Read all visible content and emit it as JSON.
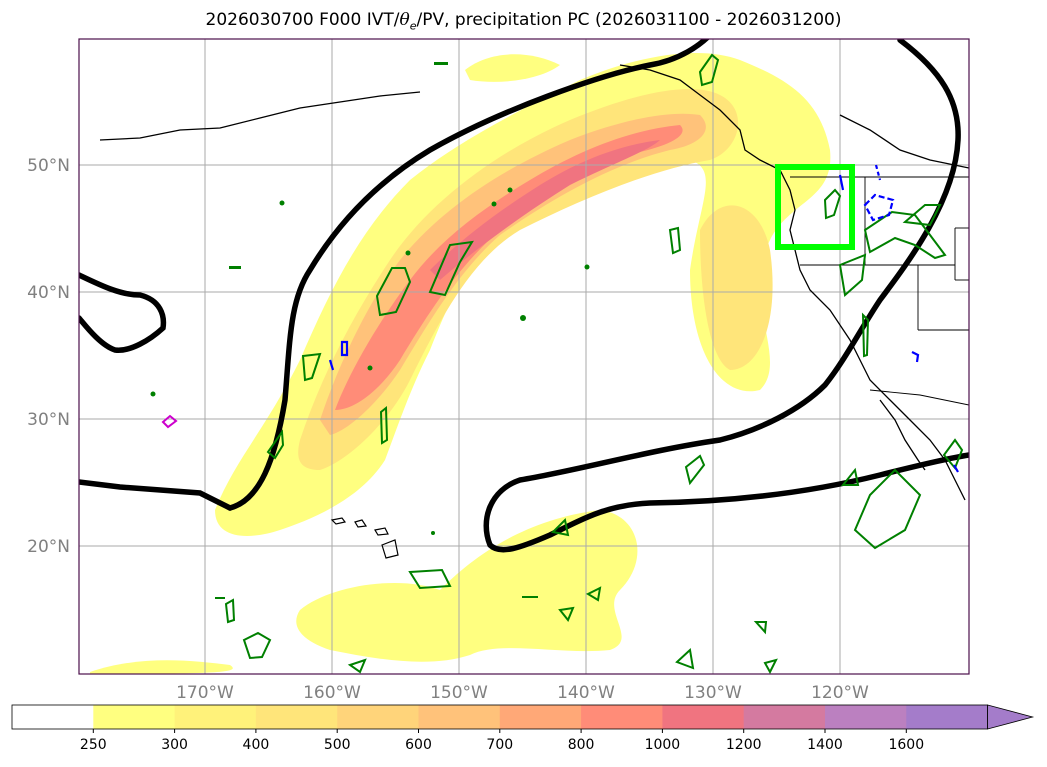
{
  "title": "2026030700 F000 IVT/θe/PV, precipitation PC (2026031100 - 2026031200)",
  "title_parts": {
    "prefix": "2026030700 F000 IVT/",
    "theta": "θ",
    "sub": "e",
    "suffix": "/PV, precipitation PC (2026031100 - 2026031200)"
  },
  "map": {
    "projection": "PlateCarree",
    "extent_lon": [
      -180,
      -110
    ],
    "extent_lat": [
      10,
      60
    ],
    "lat_labels": [
      "50°N",
      "40°N",
      "30°N",
      "20°N"
    ],
    "lon_labels": [
      "170°W",
      "160°W",
      "150°W",
      "140°W",
      "130°W",
      "120°W"
    ],
    "gridlines": true
  },
  "colorbar": {
    "levels": [
      "250",
      "300",
      "400",
      "500",
      "600",
      "700",
      "800",
      "1000",
      "1200",
      "1400",
      "1600"
    ],
    "colors": [
      "#ffffff",
      "#ffff80",
      "#fff27a",
      "#ffe57a",
      "#ffd47a",
      "#ffc27a",
      "#ffa877",
      "#ff8c78",
      "#f07480",
      "#d47aa0",
      "#bb80c0",
      "#a47cca"
    ],
    "extend": "max"
  },
  "highlight_box_color": "#00ff00",
  "contour_colors": {
    "theta_e": "#000000",
    "pv_positive": "#008000",
    "pv_negative": "#0000ff",
    "other": "#cc00cc"
  }
}
